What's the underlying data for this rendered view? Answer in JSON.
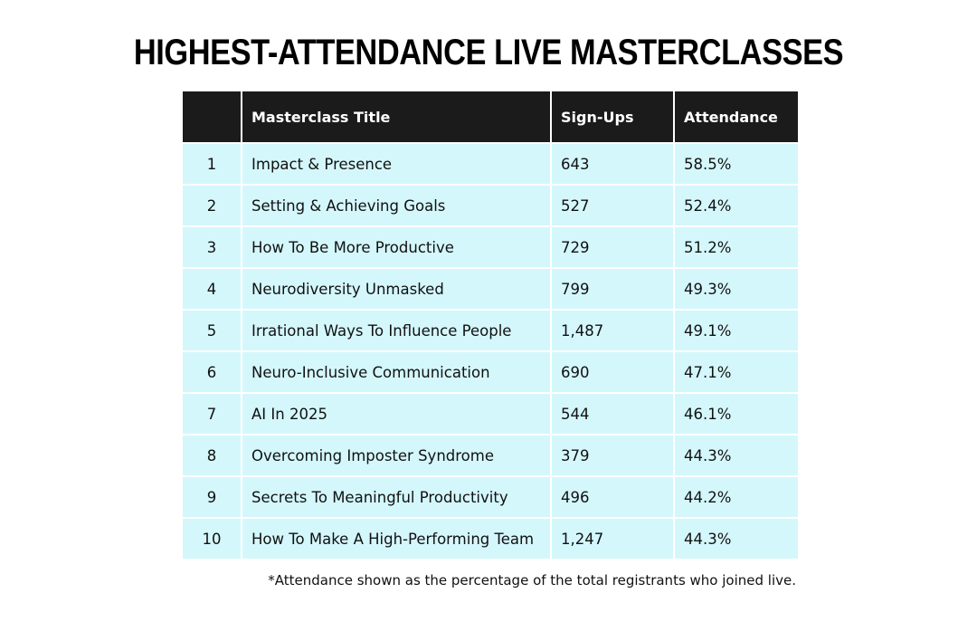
{
  "title": "HIGHEST-ATTENDANCE LIVE MASTERCLASSES",
  "table": {
    "headers": [
      "",
      "Masterclass Title",
      "Sign-Ups",
      "Attendance"
    ],
    "rows": [
      {
        "rank": "1",
        "title": "Impact & Presence",
        "signups": "643",
        "attendance": "58.5%"
      },
      {
        "rank": "2",
        "title": "Setting & Achieving Goals",
        "signups": "527",
        "attendance": "52.4%"
      },
      {
        "rank": "3",
        "title": "How To Be More Productive",
        "signups": "729",
        "attendance": "51.2%"
      },
      {
        "rank": "4",
        "title": "Neurodiversity Unmasked",
        "signups": "799",
        "attendance": "49.3%"
      },
      {
        "rank": "5",
        "title": "Irrational Ways To Influence People",
        "signups": "1,487",
        "attendance": "49.1%"
      },
      {
        "rank": "6",
        "title": "Neuro-Inclusive Communication",
        "signups": "690",
        "attendance": "47.1%"
      },
      {
        "rank": "7",
        "title": "AI In 2025",
        "signups": "544",
        "attendance": "46.1%"
      },
      {
        "rank": "8",
        "title": "Overcoming Imposter Syndrome",
        "signups": "379",
        "attendance": "44.3%"
      },
      {
        "rank": "9",
        "title": "Secrets To Meaningful Productivity",
        "signups": "496",
        "attendance": "44.2%"
      },
      {
        "rank": "10",
        "title": "How To Make A High-Performing Team",
        "signups": "1,247",
        "attendance": "44.3%"
      }
    ]
  },
  "footnote": "*Attendance shown as the percentage of the total registrants who joined live.",
  "colors": {
    "header_bg": "#1b1b1b",
    "row_bg": "#d4f7fc",
    "text": "#111111"
  }
}
